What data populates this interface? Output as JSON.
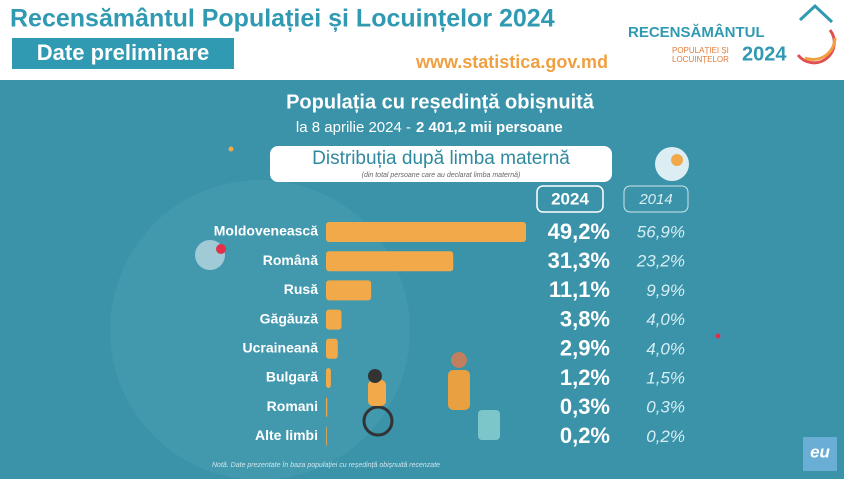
{
  "header": {
    "title": "Recensământul Populației și Locuințelor 2024",
    "badge": "Date preliminare",
    "url": "www.statistica.gov.md",
    "logo_word": "RECENSĂMÂNTUL",
    "logo_line1": "POPULAȚIEI ȘI",
    "logo_line2": "LOCUINȚELOR",
    "logo_year": "2024"
  },
  "heading": "Populația cu reședință obișnuită",
  "subheading_date": "la 8 aprilie 2024 -",
  "subheading_total": "2 401,2 mii persoane",
  "chart_data": {
    "type": "bar",
    "orientation": "horizontal",
    "title": "Distribuția după limba maternă",
    "subtitle": "(din total persoane care au declarat limba maternă)",
    "categories": [
      "Moldovenească",
      "Română",
      "Rusă",
      "Găgăuză",
      "Ucraineană",
      "Bulgară",
      "Romani",
      "Alte limbi"
    ],
    "series": [
      {
        "name": "2024",
        "color": "#f2a94a",
        "values": [
          49.2,
          31.3,
          11.1,
          3.8,
          2.9,
          1.2,
          0.3,
          0.2
        ],
        "value_labels": [
          "49,2%",
          "31,3%",
          "11,1%",
          "3,8%",
          "2,9%",
          "1,2%",
          "0,3%",
          "0,2%"
        ]
      },
      {
        "name": "2014",
        "color": "#d7eef4",
        "values": [
          56.9,
          23.2,
          9.9,
          4.0,
          4.0,
          1.5,
          0.3,
          0.2
        ],
        "value_labels": [
          "56,9%",
          "23,2%",
          "9,9%",
          "4,0%",
          "4,0%",
          "1,5%",
          "0,3%",
          "0,2%"
        ]
      }
    ]
  },
  "note": "Notă. Date prezentate în baza populației cu reședință obișnuită recenzate",
  "corner_logo": "eu"
}
